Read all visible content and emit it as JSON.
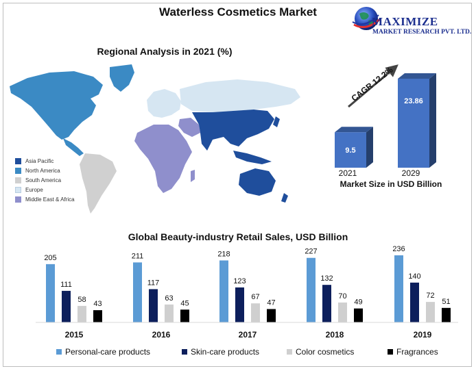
{
  "title": "Waterless Cosmetics Market",
  "logo": {
    "line1": "MAXIMIZE",
    "line2": "MARKET RESEARCH PVT. LTD."
  },
  "map_section": {
    "title": "Regional Analysis in 2021 (%)",
    "legend": [
      {
        "label": "Asia Pacific",
        "color": "#1f4e9c"
      },
      {
        "label": "North America",
        "color": "#3b8ac4"
      },
      {
        "label": "South America",
        "color": "#d0d0d0"
      },
      {
        "label": "Europe",
        "color": "#d6e6f2"
      },
      {
        "label": "Middle East & Africa",
        "color": "#8f8fcc"
      }
    ]
  },
  "chart_data": [
    {
      "type": "bar",
      "categories": [
        "2021",
        "2029"
      ],
      "values": [
        9.5,
        23.86
      ],
      "value_labels": [
        "9.5",
        "23.86"
      ],
      "annotation": "CAGR 12.2%",
      "xlabel": "Market Size in USD Billion",
      "color": "#4472c4"
    },
    {
      "type": "bar",
      "title": "Global Beauty-industry Retail Sales, USD Billion",
      "categories": [
        "2015",
        "2016",
        "2017",
        "2018",
        "2019"
      ],
      "series": [
        {
          "name": "Personal-care products",
          "color": "#5b9bd5",
          "values": [
            205,
            211,
            218,
            227,
            236
          ]
        },
        {
          "name": "Skin-care products",
          "color": "#0d1f5c",
          "values": [
            111,
            117,
            123,
            132,
            140
          ]
        },
        {
          "name": "Color cosmetics",
          "color": "#cfcfcf",
          "values": [
            58,
            63,
            67,
            70,
            72
          ]
        },
        {
          "name": "Fragrances",
          "color": "#000000",
          "values": [
            43,
            45,
            47,
            49,
            51
          ]
        }
      ],
      "legend": "bottom"
    }
  ]
}
